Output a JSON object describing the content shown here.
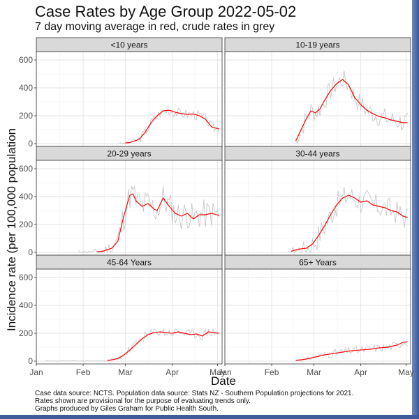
{
  "chart_data": {
    "type": "line",
    "title": "Case Rates by Age Group 2022-05-02",
    "subtitle": "7 day moving average in red, crude rates in grey",
    "xlabel": "Date",
    "ylabel": "Incidence rate (per 100,000 population",
    "x_ticks": [
      "Jan",
      "Feb",
      "Mar",
      "Apr",
      "May"
    ],
    "y_ticks": [
      0,
      200,
      400,
      600
    ],
    "ylim": [
      -20,
      660
    ],
    "grid": true,
    "colors": {
      "moving_average": "#ff0000",
      "crude": "#c8c8c8",
      "strip_bg": "#d9d9d9"
    },
    "x_day_start": 0,
    "x_day_end": 123,
    "panels": [
      {
        "label": "<10 years",
        "start_day": 55,
        "end_day": 121,
        "avg_knots": [
          [
            55,
            0
          ],
          [
            62,
            8
          ],
          [
            68,
            30
          ],
          [
            72,
            80
          ],
          [
            76,
            150
          ],
          [
            80,
            200
          ],
          [
            84,
            235
          ],
          [
            88,
            240
          ],
          [
            92,
            225
          ],
          [
            96,
            215
          ],
          [
            100,
            210
          ],
          [
            104,
            212
          ],
          [
            108,
            200
          ],
          [
            112,
            175
          ],
          [
            116,
            120
          ],
          [
            121,
            105
          ]
        ],
        "noise": 38,
        "seed": 3
      },
      {
        "label": "10-19 years",
        "start_day": 47,
        "end_day": 121,
        "avg_knots": [
          [
            47,
            20
          ],
          [
            50,
            90
          ],
          [
            54,
            180
          ],
          [
            57,
            235
          ],
          [
            60,
            220
          ],
          [
            63,
            250
          ],
          [
            66,
            310
          ],
          [
            70,
            380
          ],
          [
            74,
            430
          ],
          [
            78,
            460
          ],
          [
            82,
            420
          ],
          [
            86,
            330
          ],
          [
            90,
            280
          ],
          [
            94,
            240
          ],
          [
            98,
            215
          ],
          [
            102,
            195
          ],
          [
            106,
            185
          ],
          [
            110,
            170
          ],
          [
            114,
            160
          ],
          [
            118,
            150
          ],
          [
            121,
            150
          ]
        ],
        "noise": 75,
        "seed": 7
      },
      {
        "label": "20-29 years",
        "start_day": 28,
        "end_day": 121,
        "avg_knots": [
          [
            28,
            0
          ],
          [
            36,
            0
          ],
          [
            44,
            8
          ],
          [
            50,
            30
          ],
          [
            54,
            80
          ],
          [
            57,
            220
          ],
          [
            60,
            340
          ],
          [
            62,
            410
          ],
          [
            64,
            420
          ],
          [
            66,
            370
          ],
          [
            70,
            330
          ],
          [
            74,
            350
          ],
          [
            78,
            310
          ],
          [
            80,
            300
          ],
          [
            84,
            390
          ],
          [
            88,
            330
          ],
          [
            92,
            280
          ],
          [
            96,
            260
          ],
          [
            100,
            280
          ],
          [
            104,
            240
          ],
          [
            108,
            270
          ],
          [
            112,
            270
          ],
          [
            116,
            280
          ],
          [
            121,
            265
          ]
        ],
        "noise": 110,
        "seed": 11
      },
      {
        "label": "30-44 years",
        "start_day": 42,
        "end_day": 121,
        "avg_knots": [
          [
            42,
            0
          ],
          [
            46,
            15
          ],
          [
            50,
            25
          ],
          [
            54,
            30
          ],
          [
            58,
            60
          ],
          [
            62,
            120
          ],
          [
            66,
            190
          ],
          [
            70,
            270
          ],
          [
            74,
            340
          ],
          [
            78,
            390
          ],
          [
            82,
            410
          ],
          [
            86,
            390
          ],
          [
            90,
            360
          ],
          [
            94,
            370
          ],
          [
            98,
            340
          ],
          [
            102,
            330
          ],
          [
            106,
            320
          ],
          [
            110,
            300
          ],
          [
            114,
            290
          ],
          [
            118,
            260
          ],
          [
            121,
            250
          ]
        ],
        "noise": 90,
        "seed": 17
      },
      {
        "label": "45-64 Years",
        "start_day": 6,
        "end_day": 121,
        "avg_knots": [
          [
            6,
            0
          ],
          [
            40,
            0
          ],
          [
            48,
            5
          ],
          [
            54,
            18
          ],
          [
            58,
            45
          ],
          [
            62,
            80
          ],
          [
            66,
            120
          ],
          [
            70,
            160
          ],
          [
            74,
            190
          ],
          [
            78,
            205
          ],
          [
            82,
            210
          ],
          [
            86,
            205
          ],
          [
            90,
            200
          ],
          [
            94,
            210
          ],
          [
            98,
            200
          ],
          [
            102,
            190
          ],
          [
            106,
            195
          ],
          [
            110,
            180
          ],
          [
            114,
            210
          ],
          [
            118,
            205
          ],
          [
            121,
            200
          ]
        ],
        "noise": 35,
        "seed": 23
      },
      {
        "label": "65+ Years",
        "start_day": 47,
        "end_day": 121,
        "avg_knots": [
          [
            47,
            5
          ],
          [
            54,
            15
          ],
          [
            60,
            30
          ],
          [
            66,
            45
          ],
          [
            72,
            55
          ],
          [
            78,
            65
          ],
          [
            84,
            75
          ],
          [
            90,
            80
          ],
          [
            96,
            85
          ],
          [
            102,
            95
          ],
          [
            108,
            100
          ],
          [
            114,
            115
          ],
          [
            118,
            135
          ],
          [
            121,
            138
          ]
        ],
        "noise": 30,
        "seed": 31
      }
    ]
  },
  "caption": [
    "Case data source: NCTS. Population data source: Stats NZ -  Southern Population projections for 2021.",
    "Rates shown are provisional for the purpose of evaluating trends only.",
    "Graphs produced by Giles Graham for Public Health South."
  ]
}
